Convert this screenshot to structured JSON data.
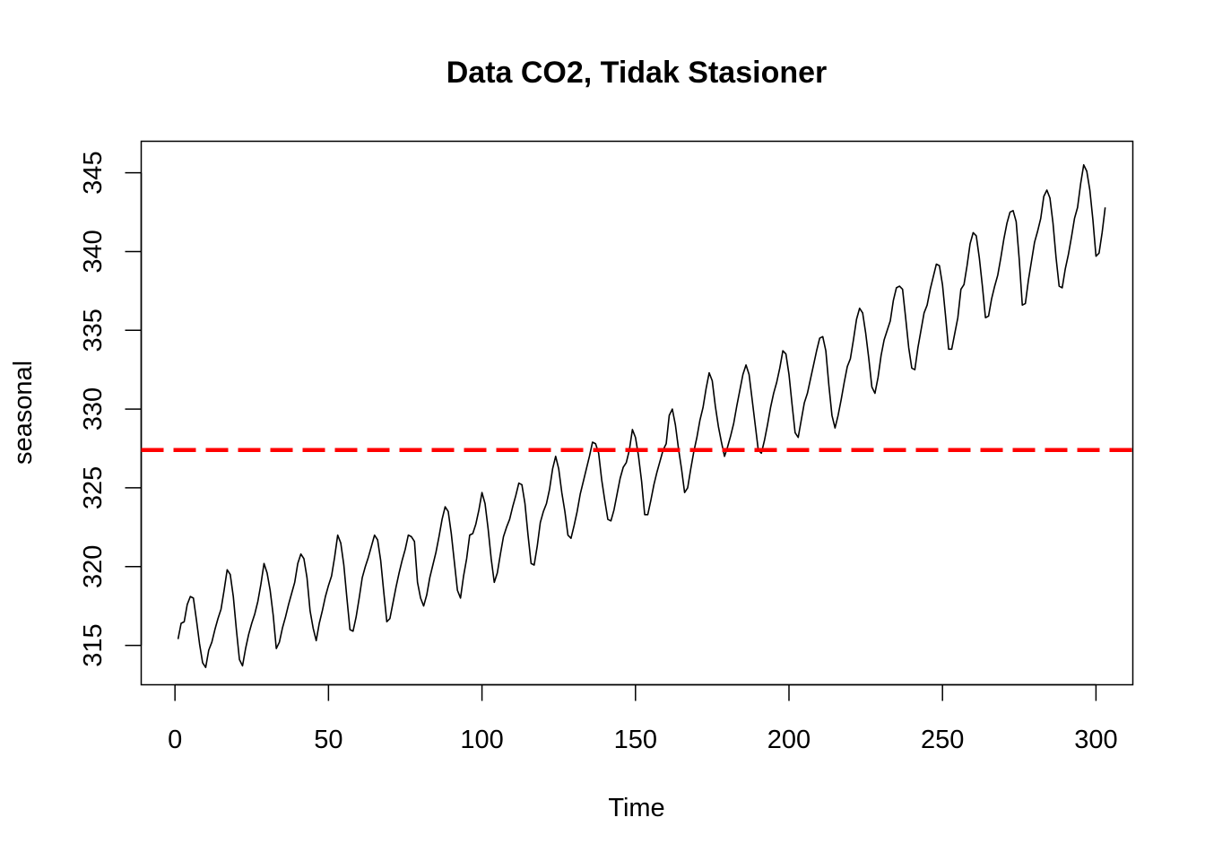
{
  "chart_data": {
    "type": "line",
    "title": "Data CO2, Tidak Stasioner",
    "xlabel": "Time",
    "ylabel": "seasonal",
    "xlim": [
      -11,
      312
    ],
    "ylim": [
      312.5,
      347
    ],
    "xticks": [
      0,
      50,
      100,
      150,
      200,
      250,
      300
    ],
    "yticks": [
      315,
      320,
      325,
      330,
      335,
      340,
      345
    ],
    "grid": false,
    "legend": "none",
    "series": [
      {
        "color": "#000000",
        "x_start": 1,
        "x_step": 1,
        "values": [
          315.4,
          316.4,
          316.5,
          317.6,
          318.1,
          318.0,
          316.6,
          315.1,
          313.9,
          313.6,
          314.7,
          315.2,
          316.0,
          316.7,
          317.3,
          318.5,
          319.8,
          319.5,
          318.1,
          316.0,
          314.1,
          313.7,
          314.8,
          315.7,
          316.4,
          317.0,
          317.8,
          318.9,
          320.2,
          319.6,
          318.5,
          316.9,
          314.8,
          315.2,
          316.1,
          316.8,
          317.6,
          318.3,
          319.0,
          320.2,
          320.8,
          320.5,
          319.3,
          317.2,
          316.1,
          315.3,
          316.4,
          317.2,
          318.1,
          318.8,
          319.4,
          320.6,
          322.0,
          321.5,
          320.1,
          318.0,
          316.0,
          315.9,
          316.8,
          318.0,
          319.3,
          320.0,
          320.6,
          321.3,
          322.0,
          321.7,
          320.4,
          318.4,
          316.5,
          316.7,
          317.7,
          318.7,
          319.6,
          320.4,
          321.1,
          322.0,
          321.9,
          321.6,
          319.0,
          318.0,
          317.5,
          318.2,
          319.3,
          320.1,
          320.9,
          321.9,
          323.0,
          323.8,
          323.5,
          322.1,
          320.3,
          318.5,
          318.0,
          319.4,
          320.5,
          322.0,
          322.1,
          322.7,
          323.6,
          324.7,
          324.0,
          322.4,
          320.5,
          319.0,
          319.6,
          320.8,
          321.9,
          322.5,
          323.0,
          323.8,
          324.5,
          325.3,
          325.2,
          324.0,
          322.0,
          320.2,
          320.1,
          321.3,
          322.8,
          323.5,
          324.0,
          324.9,
          326.2,
          327.0,
          326.2,
          324.7,
          323.5,
          322.0,
          321.8,
          322.6,
          323.5,
          324.6,
          325.4,
          326.2,
          327.0,
          327.9,
          327.8,
          327.2,
          325.5,
          324.2,
          323.0,
          322.9,
          323.6,
          324.6,
          325.6,
          326.3,
          326.6,
          327.4,
          328.7,
          328.2,
          327.0,
          325.4,
          323.3,
          323.3,
          324.2,
          325.2,
          326.0,
          326.7,
          327.4,
          327.8,
          329.6,
          330.0,
          329.0,
          327.5,
          326.2,
          324.7,
          325.0,
          326.2,
          327.3,
          328.2,
          329.3,
          330.1,
          331.3,
          332.3,
          331.8,
          330.2,
          328.9,
          327.9,
          327.0,
          327.6,
          328.3,
          329.1,
          330.2,
          331.2,
          332.2,
          332.8,
          332.2,
          330.6,
          329.0,
          327.4,
          327.2,
          328.0,
          329.0,
          330.1,
          331.0,
          331.7,
          332.6,
          333.7,
          333.5,
          332.2,
          330.3,
          328.5,
          328.2,
          329.3,
          330.4,
          331.0,
          331.9,
          332.8,
          333.7,
          334.5,
          334.6,
          333.7,
          331.5,
          329.6,
          328.8,
          329.6,
          330.6,
          331.7,
          332.7,
          333.2,
          334.4,
          335.7,
          336.4,
          336.1,
          334.8,
          333.2,
          331.4,
          331.0,
          332.0,
          333.4,
          334.4,
          335.0,
          335.6,
          336.9,
          337.7,
          337.8,
          337.6,
          335.8,
          333.9,
          332.6,
          332.5,
          333.9,
          335.0,
          336.1,
          336.6,
          337.6,
          338.4,
          339.2,
          339.1,
          337.9,
          335.9,
          333.8,
          333.8,
          334.8,
          335.8,
          337.6,
          337.9,
          339.1,
          340.5,
          341.2,
          341.0,
          339.6,
          337.8,
          335.8,
          335.9,
          337.0,
          337.8,
          338.5,
          339.6,
          340.8,
          341.8,
          342.5,
          342.6,
          341.9,
          339.5,
          336.6,
          336.7,
          338.2,
          339.4,
          340.6,
          341.3,
          342.1,
          343.5,
          343.9,
          343.4,
          341.8,
          339.6,
          337.8,
          337.7,
          338.9,
          339.8,
          340.9,
          342.1,
          342.8,
          344.3,
          345.5,
          345.1,
          343.9,
          342.0,
          339.7,
          339.9,
          341.2,
          342.8
        ]
      }
    ],
    "reference_line": {
      "y": 327.4,
      "color": "#ff0000",
      "style": "dashed"
    }
  }
}
